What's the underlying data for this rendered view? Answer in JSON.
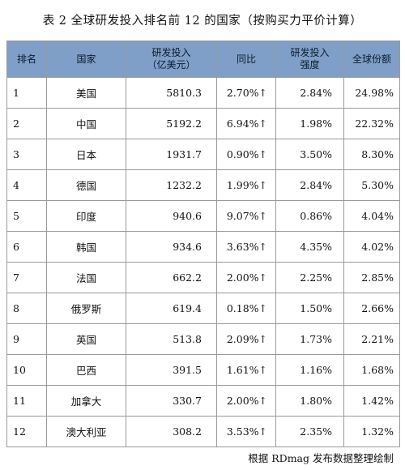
{
  "title": "表 2  全球研发投入排名前 12 的国家（按购买力平价计算）",
  "headers": {
    "rank": "排名",
    "country": "国家",
    "rd_line1": "研发投入",
    "rd_line2": "（亿美元）",
    "growth": "同比",
    "intensity_line1": "研发投入",
    "intensity_line2": "强度",
    "share": "全球份额"
  },
  "rows": [
    {
      "rank": "1",
      "country": "美国",
      "rd": "5810.3",
      "growth": "2.70%↑",
      "intensity": "2.84%",
      "share": "24.98%"
    },
    {
      "rank": "2",
      "country": "中国",
      "rd": "5192.2",
      "growth": "6.94%↑",
      "intensity": "1.98%",
      "share": "22.32%"
    },
    {
      "rank": "3",
      "country": "日本",
      "rd": "1931.7",
      "growth": "0.90%↑",
      "intensity": "3.50%",
      "share": "8.30%"
    },
    {
      "rank": "4",
      "country": "德国",
      "rd": "1232.2",
      "growth": "1.99%↑",
      "intensity": "2.84%",
      "share": "5.30%"
    },
    {
      "rank": "5",
      "country": "印度",
      "rd": "940.6",
      "growth": "9.07%↑",
      "intensity": "0.86%",
      "share": "4.04%"
    },
    {
      "rank": "6",
      "country": "韩国",
      "rd": "934.6",
      "growth": "3.63%↑",
      "intensity": "4.35%",
      "share": "4.02%"
    },
    {
      "rank": "7",
      "country": "法国",
      "rd": "662.2",
      "growth": "2.00%↑",
      "intensity": "2.25%",
      "share": "2.85%"
    },
    {
      "rank": "8",
      "country": "俄罗斯",
      "rd": "619.4",
      "growth": "0.18%↑",
      "intensity": "1.50%",
      "share": "2.66%"
    },
    {
      "rank": "9",
      "country": "英国",
      "rd": "513.8",
      "growth": "2.09%↑",
      "intensity": "1.73%",
      "share": "2.21%"
    },
    {
      "rank": "10",
      "country": "巴西",
      "rd": "391.5",
      "growth": "1.61%↑",
      "intensity": "1.16%",
      "share": "1.68%"
    },
    {
      "rank": "11",
      "country": "加拿大",
      "rd": "330.7",
      "growth": "2.00%↑",
      "intensity": "1.80%",
      "share": "1.42%"
    },
    {
      "rank": "12",
      "country": "澳大利亚",
      "rd": "308.2",
      "growth": "3.53%↑",
      "intensity": "2.35%",
      "share": "1.32%"
    }
  ],
  "footer": "根据 RDmag 发布数据整理绘制",
  "colors": {
    "header_bg": "#7f9fc8",
    "border": "#9a9a9a"
  }
}
